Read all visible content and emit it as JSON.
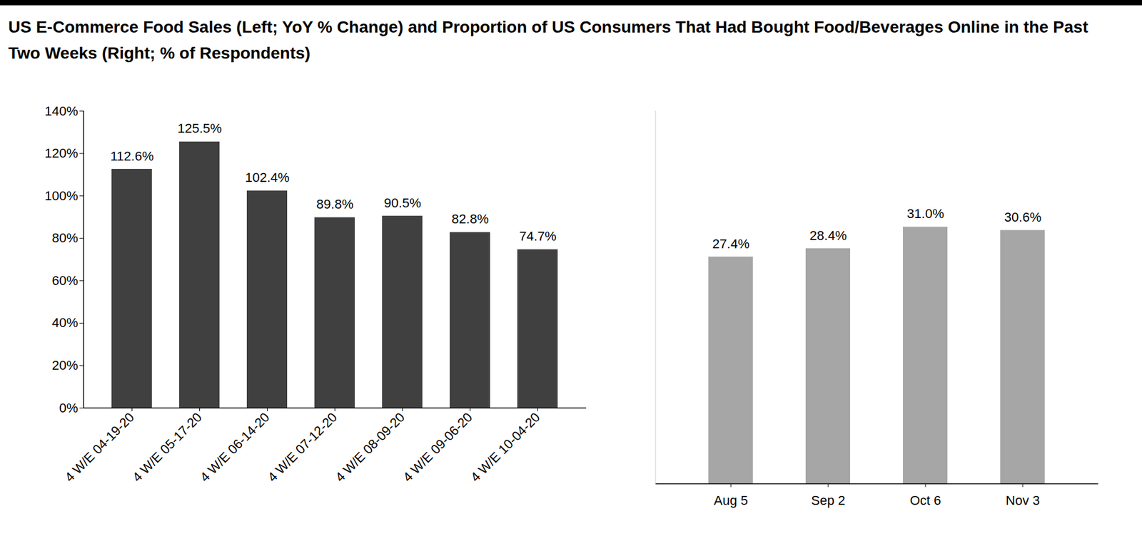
{
  "chart_data": [
    {
      "type": "bar",
      "title": "US E-Commerce Food Sales (Left; YoY % Change) and Proportion of US Consumers That Had Bought Food/Beverages Online in the Past Two Weeks (Right; % of Respondents)",
      "categories": [
        "4 W/E 04-19-20",
        "4 W/E 05-17-20",
        "4 W/E 06-14-20",
        "4 W/E 07-12-20",
        "4 W/E 08-09-20",
        "4 W/E 09-06-20",
        "4 W/E 10-04-20"
      ],
      "values": [
        112.6,
        125.5,
        102.4,
        89.8,
        90.5,
        82.8,
        74.7
      ],
      "value_labels": [
        "112.6%",
        "125.5%",
        "102.4%",
        "89.8%",
        "90.5%",
        "82.8%",
        "74.7%"
      ],
      "data_labels": true,
      "color": "#404040",
      "ylim": [
        0,
        140
      ],
      "yticks": [
        {
          "value": 0,
          "label": "0%"
        },
        {
          "value": 20,
          "label": "20%"
        },
        {
          "value": 40,
          "label": "40%"
        },
        {
          "value": 60,
          "label": "60%"
        },
        {
          "value": 80,
          "label": "80%"
        },
        {
          "value": 100,
          "label": "100%"
        },
        {
          "value": 120,
          "label": "120%"
        },
        {
          "value": 140,
          "label": "140%"
        }
      ],
      "grid": false
    },
    {
      "type": "bar",
      "categories": [
        "Aug 5",
        "Sep 2",
        "Oct 6",
        "Nov 3"
      ],
      "values": [
        27.4,
        28.4,
        31.0,
        30.6
      ],
      "value_labels": [
        "27.4%",
        "28.4%",
        "31.0%",
        "30.6%"
      ],
      "data_labels": true,
      "color": "#a6a6a6",
      "ylim": [
        0,
        45
      ],
      "yticks": [],
      "tick_labels": "x",
      "grid": false
    }
  ]
}
